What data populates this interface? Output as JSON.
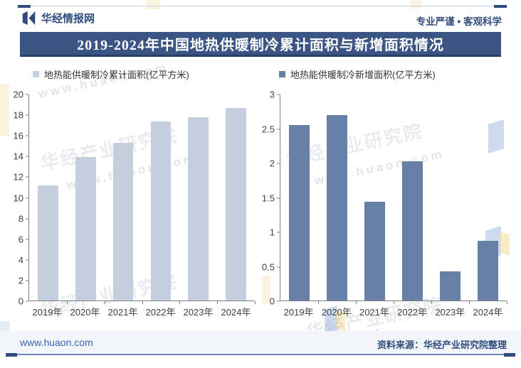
{
  "header": {
    "brand": "华经情报网",
    "slogan": "专业严谨 • 客观科学"
  },
  "title_bar": {
    "title": "2019-2024年中国地热供暖制冷累计面积与新增面积情况"
  },
  "footer": {
    "site": "www.huaon.com",
    "source": "资料来源：华经产业研究院整理"
  },
  "watermark": {
    "org": "华经产业研究院",
    "site": "www.huaon.com"
  },
  "colors": {
    "title_bar_bg": "#3A5584",
    "accent_navy": "#2F4C7E",
    "bar_cumulative": "#C5CEDF",
    "bar_new": "#6780A8",
    "axis_gray": "#808080",
    "footer_band": "#F2F5FA",
    "footer_link": "#3A66B3"
  },
  "chart_data": [
    {
      "type": "bar",
      "series_name": "地热能供暖制冷累计面积(亿平方米)",
      "categories": [
        "2019年",
        "2020年",
        "2021年",
        "2022年",
        "2023年",
        "2024年"
      ],
      "values": [
        11.2,
        13.9,
        15.3,
        17.4,
        17.8,
        18.7
      ],
      "ylim": [
        0,
        20
      ],
      "ytick_step": 2,
      "bar_color": "#C5CEDF",
      "grid": false,
      "legend_position": "top-left"
    },
    {
      "type": "bar",
      "series_name": "地热能供暖制冷新增面积(亿平方米)",
      "categories": [
        "2019年",
        "2020年",
        "2021年",
        "2022年",
        "2023年",
        "2024年"
      ],
      "values": [
        2.56,
        2.7,
        1.44,
        2.03,
        0.42,
        0.87
      ],
      "ylim": [
        0,
        3
      ],
      "ytick_step": 0.5,
      "bar_color": "#6780A8",
      "grid": false,
      "legend_position": "top-left"
    }
  ]
}
